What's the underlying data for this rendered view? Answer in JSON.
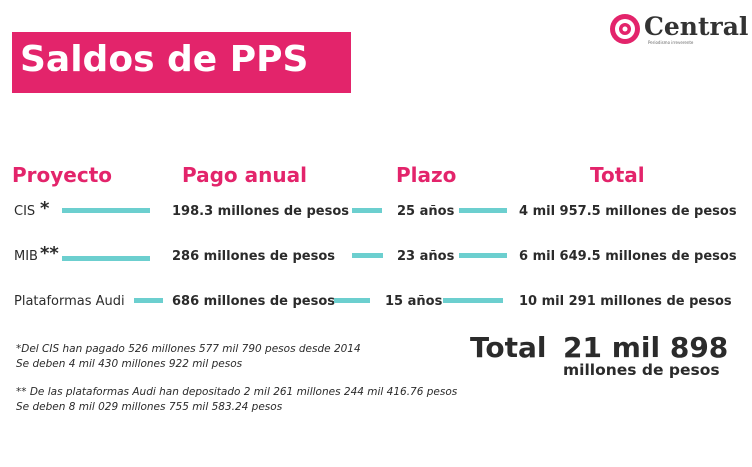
{
  "header": {
    "title": "Saldos de PPS",
    "logo": "Central",
    "logo_tagline": "Periodismo irreverente"
  },
  "table": {
    "headers": [
      "Proyecto",
      "Pago anual",
      "Plazo",
      "Total"
    ],
    "rows": [
      {
        "project": "CIS",
        "note_mark": "*",
        "payment": "198.3 millones de pesos",
        "term": "25 años",
        "total": "4 mil 957.5 millones de pesos"
      },
      {
        "project": "MIB",
        "note_mark": "**",
        "payment": "286 millones de pesos",
        "term": "23 años",
        "total": "6 mil 649.5 millones de pesos"
      },
      {
        "project": "Plataformas Audi",
        "payment": "686 millones de pesos",
        "term": "15 años",
        "total": "10 mil 291 millones de pesos"
      }
    ]
  },
  "summary": {
    "label": "Total",
    "amount": "21 mil 898",
    "unit": "millones de pesos"
  },
  "notes": [
    [
      "*Del CIS han pagado 526 millones 577 mil 790 pesos desde 2014",
      "Se deben 4 mil 430 millones 922 mil pesos"
    ],
    [
      "** De las plataformas Audi han depositado 2 mil 261 millones 244 mil 416.76 pesos",
      "Se deben 8 mil 029 millones 755 mil 583.24 pesos"
    ]
  ]
}
